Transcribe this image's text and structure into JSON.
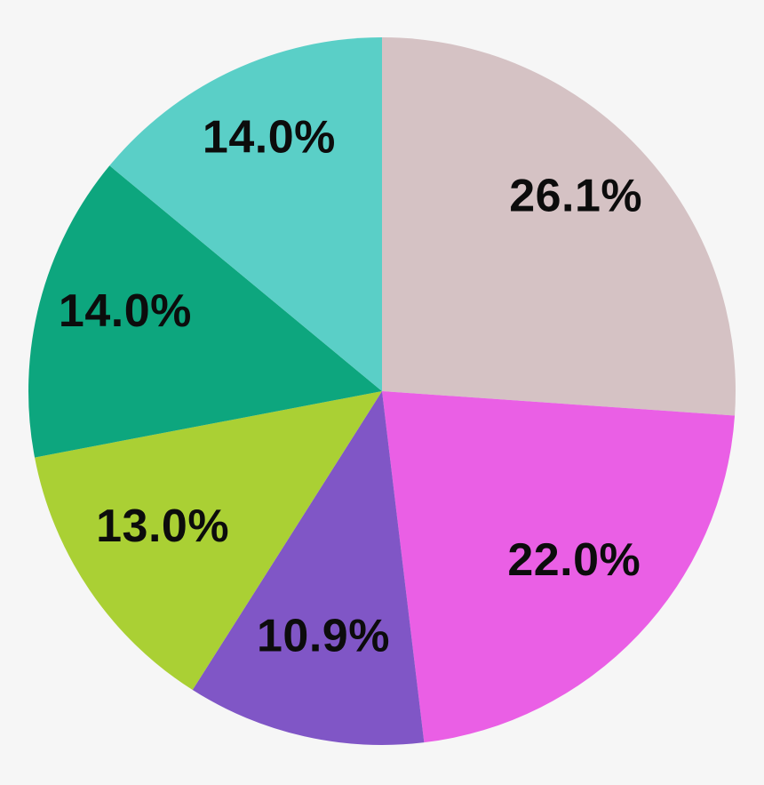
{
  "chart_data": {
    "type": "pie",
    "title": "",
    "labels": [
      "26.1%",
      "22.0%",
      "10.9%",
      "13.0%",
      "14.0%",
      "14.0%"
    ],
    "values": [
      26.1,
      22.0,
      10.9,
      13.0,
      14.0,
      14.0
    ],
    "colors": [
      "#d5c2c4",
      "#ea5fe5",
      "#8056c6",
      "#aad034",
      "#0da67e",
      "#5acfc7"
    ],
    "label_color": "#0c0c0c",
    "background_color": "#f6f6f6",
    "start_position": "top",
    "direction": "clockwise",
    "legend": "none",
    "data_labels": "percent-inside"
  }
}
